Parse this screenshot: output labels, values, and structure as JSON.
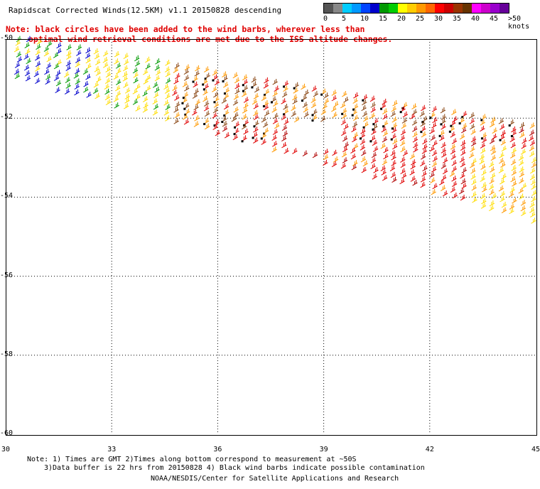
{
  "title": "Rapidscat Corrected Winds(12.5KM) v1.1 20150828 descending",
  "note": {
    "line1": "Note: black circles have been added to the wind barbs, wherever less than",
    "line2": "optimal wind retrieval conditions are met due to the ISS altitude changes."
  },
  "legend": {
    "labels": [
      "0",
      "5",
      "10",
      "15",
      "20",
      "25",
      "30",
      "35",
      "40",
      "45",
      ">50 knots"
    ],
    "colors": [
      "#555555",
      "#888888",
      "#00ccff",
      "#0099ff",
      "#0044ff",
      "#0000cc",
      "#009900",
      "#00cc00",
      "#ffff00",
      "#ffcc00",
      "#ff9900",
      "#ff6600",
      "#ff0000",
      "#cc0000",
      "#993300",
      "#663300",
      "#ff00ff",
      "#cc00cc",
      "#9900cc",
      "#660099"
    ]
  },
  "map": {
    "lat_labels": [
      "-50",
      "-52",
      "-54",
      "-56",
      "-58",
      "-60"
    ],
    "lon_labels": [
      "30",
      "33",
      "36",
      "39",
      "42",
      "45"
    ],
    "lon_range": [
      30,
      45
    ],
    "lat_range": [
      -60,
      -50
    ]
  },
  "footer": {
    "line1": "Note: 1) Times are GMT 2)Times along bottom correspond to measurement at ~50S",
    "line2": "3)Data buffer is 22 hrs from 20150828 4) Black wind barbs indicate possible contamination",
    "line3": "NOAA/NESDIS/Center for Satellite Applications and Research"
  }
}
